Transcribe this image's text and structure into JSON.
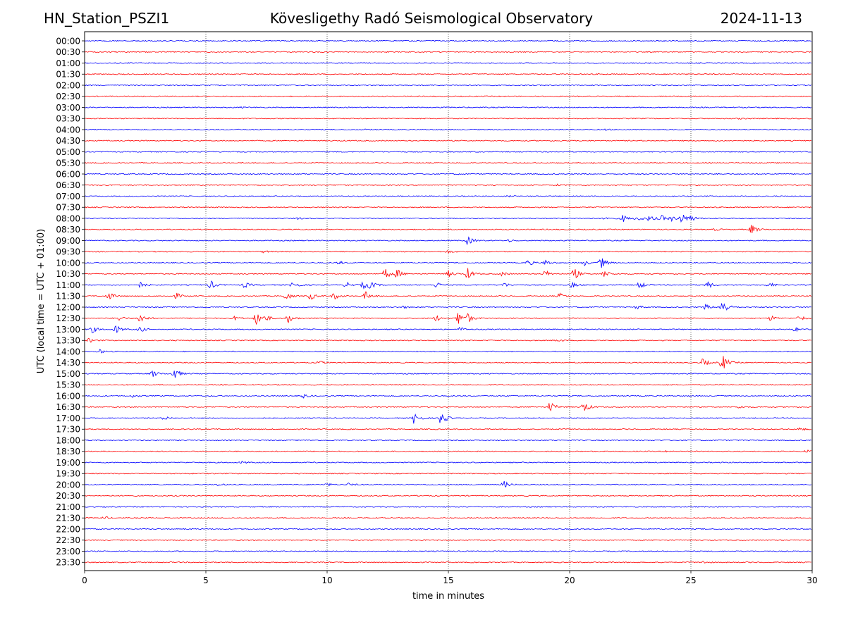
{
  "header": {
    "station": "HN_Station_PSZI1",
    "title": "Kövesligethy Radó Seismological Observatory",
    "date": "2024-11-13"
  },
  "chart_data": {
    "type": "line",
    "subtype": "helicorder",
    "title": "Kövesligethy Radó Seismological Observatory",
    "xlabel": "time in minutes",
    "ylabel": "UTC (local time = UTC + 01:00)",
    "xlim": [
      0,
      30
    ],
    "xticks": [
      "0",
      "5",
      "10",
      "15",
      "20",
      "25",
      "30"
    ],
    "grid": "vertical dotted lines at each x tick",
    "colors": {
      "even_rows": "#0000ff",
      "odd_rows": "#ff0000"
    },
    "rows": [
      {
        "label": "00:00",
        "events": []
      },
      {
        "label": "00:30",
        "events": []
      },
      {
        "label": "01:00",
        "events": []
      },
      {
        "label": "01:30",
        "events": []
      },
      {
        "label": "02:00",
        "events": []
      },
      {
        "label": "02:30",
        "events": []
      },
      {
        "label": "03:00",
        "events": [
          {
            "t": 6.5,
            "a": 0.6
          }
        ]
      },
      {
        "label": "03:30",
        "events": [
          {
            "t": 27.0,
            "a": 0.6
          }
        ]
      },
      {
        "label": "04:00",
        "events": [
          {
            "t": 11.5,
            "a": 0.5
          },
          {
            "t": 21.5,
            "a": 0.7
          }
        ]
      },
      {
        "label": "04:30",
        "events": []
      },
      {
        "label": "05:00",
        "events": []
      },
      {
        "label": "05:30",
        "events": [
          {
            "t": 21.0,
            "a": 0.6
          }
        ]
      },
      {
        "label": "06:00",
        "events": [
          {
            "t": 15.5,
            "a": 0.4
          }
        ]
      },
      {
        "label": "06:30",
        "events": [
          {
            "t": 19.5,
            "a": 0.9
          },
          {
            "t": 22.0,
            "a": 0.7
          }
        ]
      },
      {
        "label": "07:00",
        "events": [
          {
            "t": 17.5,
            "a": 0.6
          }
        ]
      },
      {
        "label": "07:30",
        "events": []
      },
      {
        "label": "08:00",
        "events": [
          {
            "t": 8.8,
            "a": 1.2
          },
          {
            "t": 21.5,
            "a": 2
          },
          {
            "t": 22.2,
            "a": 5
          },
          {
            "t": 22.8,
            "a": 4
          },
          {
            "t": 23.3,
            "a": 4
          },
          {
            "t": 23.8,
            "a": 4
          },
          {
            "t": 24.2,
            "a": 3
          },
          {
            "t": 24.6,
            "a": 8
          },
          {
            "t": 25.0,
            "a": 4
          }
        ]
      },
      {
        "label": "08:30",
        "events": [
          {
            "t": 26.0,
            "a": 1.5
          },
          {
            "t": 27.5,
            "a": 7
          }
        ]
      },
      {
        "label": "09:00",
        "events": [
          {
            "t": 15.8,
            "a": 6
          },
          {
            "t": 17.5,
            "a": 1.5
          }
        ]
      },
      {
        "label": "09:30",
        "events": [
          {
            "t": 7.4,
            "a": 1.5
          },
          {
            "t": 15.0,
            "a": 2
          }
        ]
      },
      {
        "label": "10:00",
        "events": [
          {
            "t": 10.5,
            "a": 2
          },
          {
            "t": 18.3,
            "a": 4
          },
          {
            "t": 19.0,
            "a": 4
          },
          {
            "t": 20.6,
            "a": 4
          },
          {
            "t": 21.3,
            "a": 8
          }
        ]
      },
      {
        "label": "10:30",
        "events": [
          {
            "t": 12.4,
            "a": 8
          },
          {
            "t": 12.9,
            "a": 6
          },
          {
            "t": 15.0,
            "a": 5
          },
          {
            "t": 15.8,
            "a": 8
          },
          {
            "t": 17.2,
            "a": 3
          },
          {
            "t": 19.0,
            "a": 5
          },
          {
            "t": 20.2,
            "a": 8
          },
          {
            "t": 21.4,
            "a": 6
          }
        ]
      },
      {
        "label": "11:00",
        "events": [
          {
            "t": 2.3,
            "a": 4
          },
          {
            "t": 5.2,
            "a": 6
          },
          {
            "t": 6.6,
            "a": 4
          },
          {
            "t": 8.6,
            "a": 6
          },
          {
            "t": 10.8,
            "a": 4
          },
          {
            "t": 11.5,
            "a": 5
          },
          {
            "t": 11.8,
            "a": 5
          },
          {
            "t": 14.5,
            "a": 4
          },
          {
            "t": 17.3,
            "a": 3
          },
          {
            "t": 20.1,
            "a": 4
          },
          {
            "t": 22.9,
            "a": 5
          },
          {
            "t": 25.7,
            "a": 5
          },
          {
            "t": 28.2,
            "a": 4
          }
        ]
      },
      {
        "label": "11:30",
        "events": [
          {
            "t": 1.0,
            "a": 6
          },
          {
            "t": 3.8,
            "a": 4
          },
          {
            "t": 8.3,
            "a": 6
          },
          {
            "t": 9.3,
            "a": 6
          },
          {
            "t": 10.3,
            "a": 5
          },
          {
            "t": 11.6,
            "a": 6
          },
          {
            "t": 19.6,
            "a": 4
          }
        ]
      },
      {
        "label": "12:00",
        "events": [
          {
            "t": 13.1,
            "a": 2
          },
          {
            "t": 22.8,
            "a": 3
          },
          {
            "t": 25.6,
            "a": 4
          },
          {
            "t": 26.3,
            "a": 12
          }
        ]
      },
      {
        "label": "12:30",
        "events": [
          {
            "t": 1.4,
            "a": 4
          },
          {
            "t": 2.3,
            "a": 8
          },
          {
            "t": 6.2,
            "a": 3
          },
          {
            "t": 7.1,
            "a": 10
          },
          {
            "t": 7.5,
            "a": 3
          },
          {
            "t": 8.4,
            "a": 6
          },
          {
            "t": 14.5,
            "a": 4
          },
          {
            "t": 15.4,
            "a": 10
          },
          {
            "t": 15.8,
            "a": 6
          },
          {
            "t": 28.3,
            "a": 4
          },
          {
            "t": 29.5,
            "a": 4
          }
        ]
      },
      {
        "label": "13:00",
        "events": [
          {
            "t": 0.3,
            "a": 5
          },
          {
            "t": 1.3,
            "a": 6
          },
          {
            "t": 2.3,
            "a": 4
          },
          {
            "t": 15.5,
            "a": 3
          },
          {
            "t": 29.3,
            "a": 3
          }
        ]
      },
      {
        "label": "13:30",
        "events": [
          {
            "t": 0.2,
            "a": 3
          },
          {
            "t": 19.5,
            "a": 1.5
          }
        ]
      },
      {
        "label": "14:00",
        "events": [
          {
            "t": 0.6,
            "a": 3
          }
        ]
      },
      {
        "label": "14:30",
        "events": [
          {
            "t": 9.7,
            "a": 2
          },
          {
            "t": 25.5,
            "a": 6
          },
          {
            "t": 26.3,
            "a": 12
          }
        ]
      },
      {
        "label": "15:00",
        "events": [
          {
            "t": 2.8,
            "a": 5
          },
          {
            "t": 3.7,
            "a": 9
          }
        ]
      },
      {
        "label": "15:30",
        "events": []
      },
      {
        "label": "16:00",
        "events": [
          {
            "t": 2.0,
            "a": 2
          },
          {
            "t": 9.0,
            "a": 3
          }
        ]
      },
      {
        "label": "16:30",
        "events": [
          {
            "t": 19.2,
            "a": 8
          },
          {
            "t": 20.6,
            "a": 8
          },
          {
            "t": 27.0,
            "a": 2
          }
        ]
      },
      {
        "label": "17:00",
        "events": [
          {
            "t": 3.3,
            "a": 3
          },
          {
            "t": 13.6,
            "a": 9
          },
          {
            "t": 14.7,
            "a": 11
          }
        ]
      },
      {
        "label": "17:30",
        "events": [
          {
            "t": 29.5,
            "a": 2
          }
        ]
      },
      {
        "label": "18:00",
        "events": []
      },
      {
        "label": "18:30",
        "events": [
          {
            "t": 24.0,
            "a": 1.5
          },
          {
            "t": 29.8,
            "a": 2
          }
        ]
      },
      {
        "label": "19:00",
        "events": [
          {
            "t": 6.5,
            "a": 1.5
          }
        ]
      },
      {
        "label": "19:30",
        "events": []
      },
      {
        "label": "20:00",
        "events": [
          {
            "t": 5.5,
            "a": 1.5
          },
          {
            "t": 10.0,
            "a": 2
          },
          {
            "t": 10.9,
            "a": 2
          },
          {
            "t": 17.3,
            "a": 5
          }
        ]
      },
      {
        "label": "20:30",
        "events": []
      },
      {
        "label": "21:00",
        "events": []
      },
      {
        "label": "21:30",
        "events": [
          {
            "t": 0.8,
            "a": 2
          }
        ]
      },
      {
        "label": "22:00",
        "events": []
      },
      {
        "label": "22:30",
        "events": []
      },
      {
        "label": "23:00",
        "events": []
      },
      {
        "label": "23:30",
        "events": [
          {
            "t": 25.5,
            "a": 1.5
          }
        ]
      }
    ]
  }
}
